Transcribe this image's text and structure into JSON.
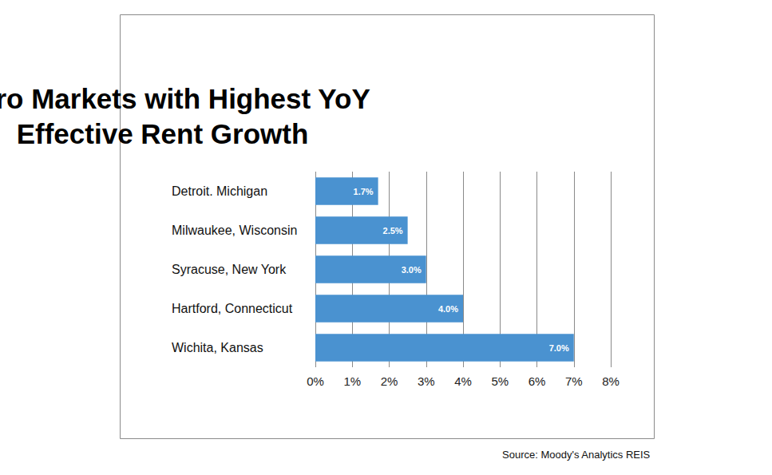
{
  "chart_data": {
    "type": "bar",
    "orientation": "horizontal",
    "title": "Metro Markets with Highest YoY Effective Rent Growth",
    "annotations": [
      "Source: Moody's Analytics REIS"
    ],
    "categories": [
      "Detroit. Michigan",
      "Milwaukee, Wisconsin",
      "Syracuse, New York",
      "Hartford, Connecticut",
      "Wichita, Kansas"
    ],
    "values": [
      1.7,
      2.5,
      3.0,
      4.0,
      7.0
    ],
    "value_labels": [
      "1.7%",
      "2.5%",
      "3.0%",
      "4.0%",
      "7.0%"
    ],
    "color": "#4a92d0",
    "xlim": [
      0,
      8
    ],
    "xticks": [
      {
        "value": 0,
        "label": "0%"
      },
      {
        "value": 1,
        "label": "1%"
      },
      {
        "value": 2,
        "label": "2%"
      },
      {
        "value": 3,
        "label": "3%"
      },
      {
        "value": 4,
        "label": "4%"
      },
      {
        "value": 5,
        "label": "5%"
      },
      {
        "value": 6,
        "label": "6%"
      },
      {
        "value": 7,
        "label": "7%"
      },
      {
        "value": 8,
        "label": "8%"
      }
    ],
    "grid": true,
    "data_labels": true
  }
}
